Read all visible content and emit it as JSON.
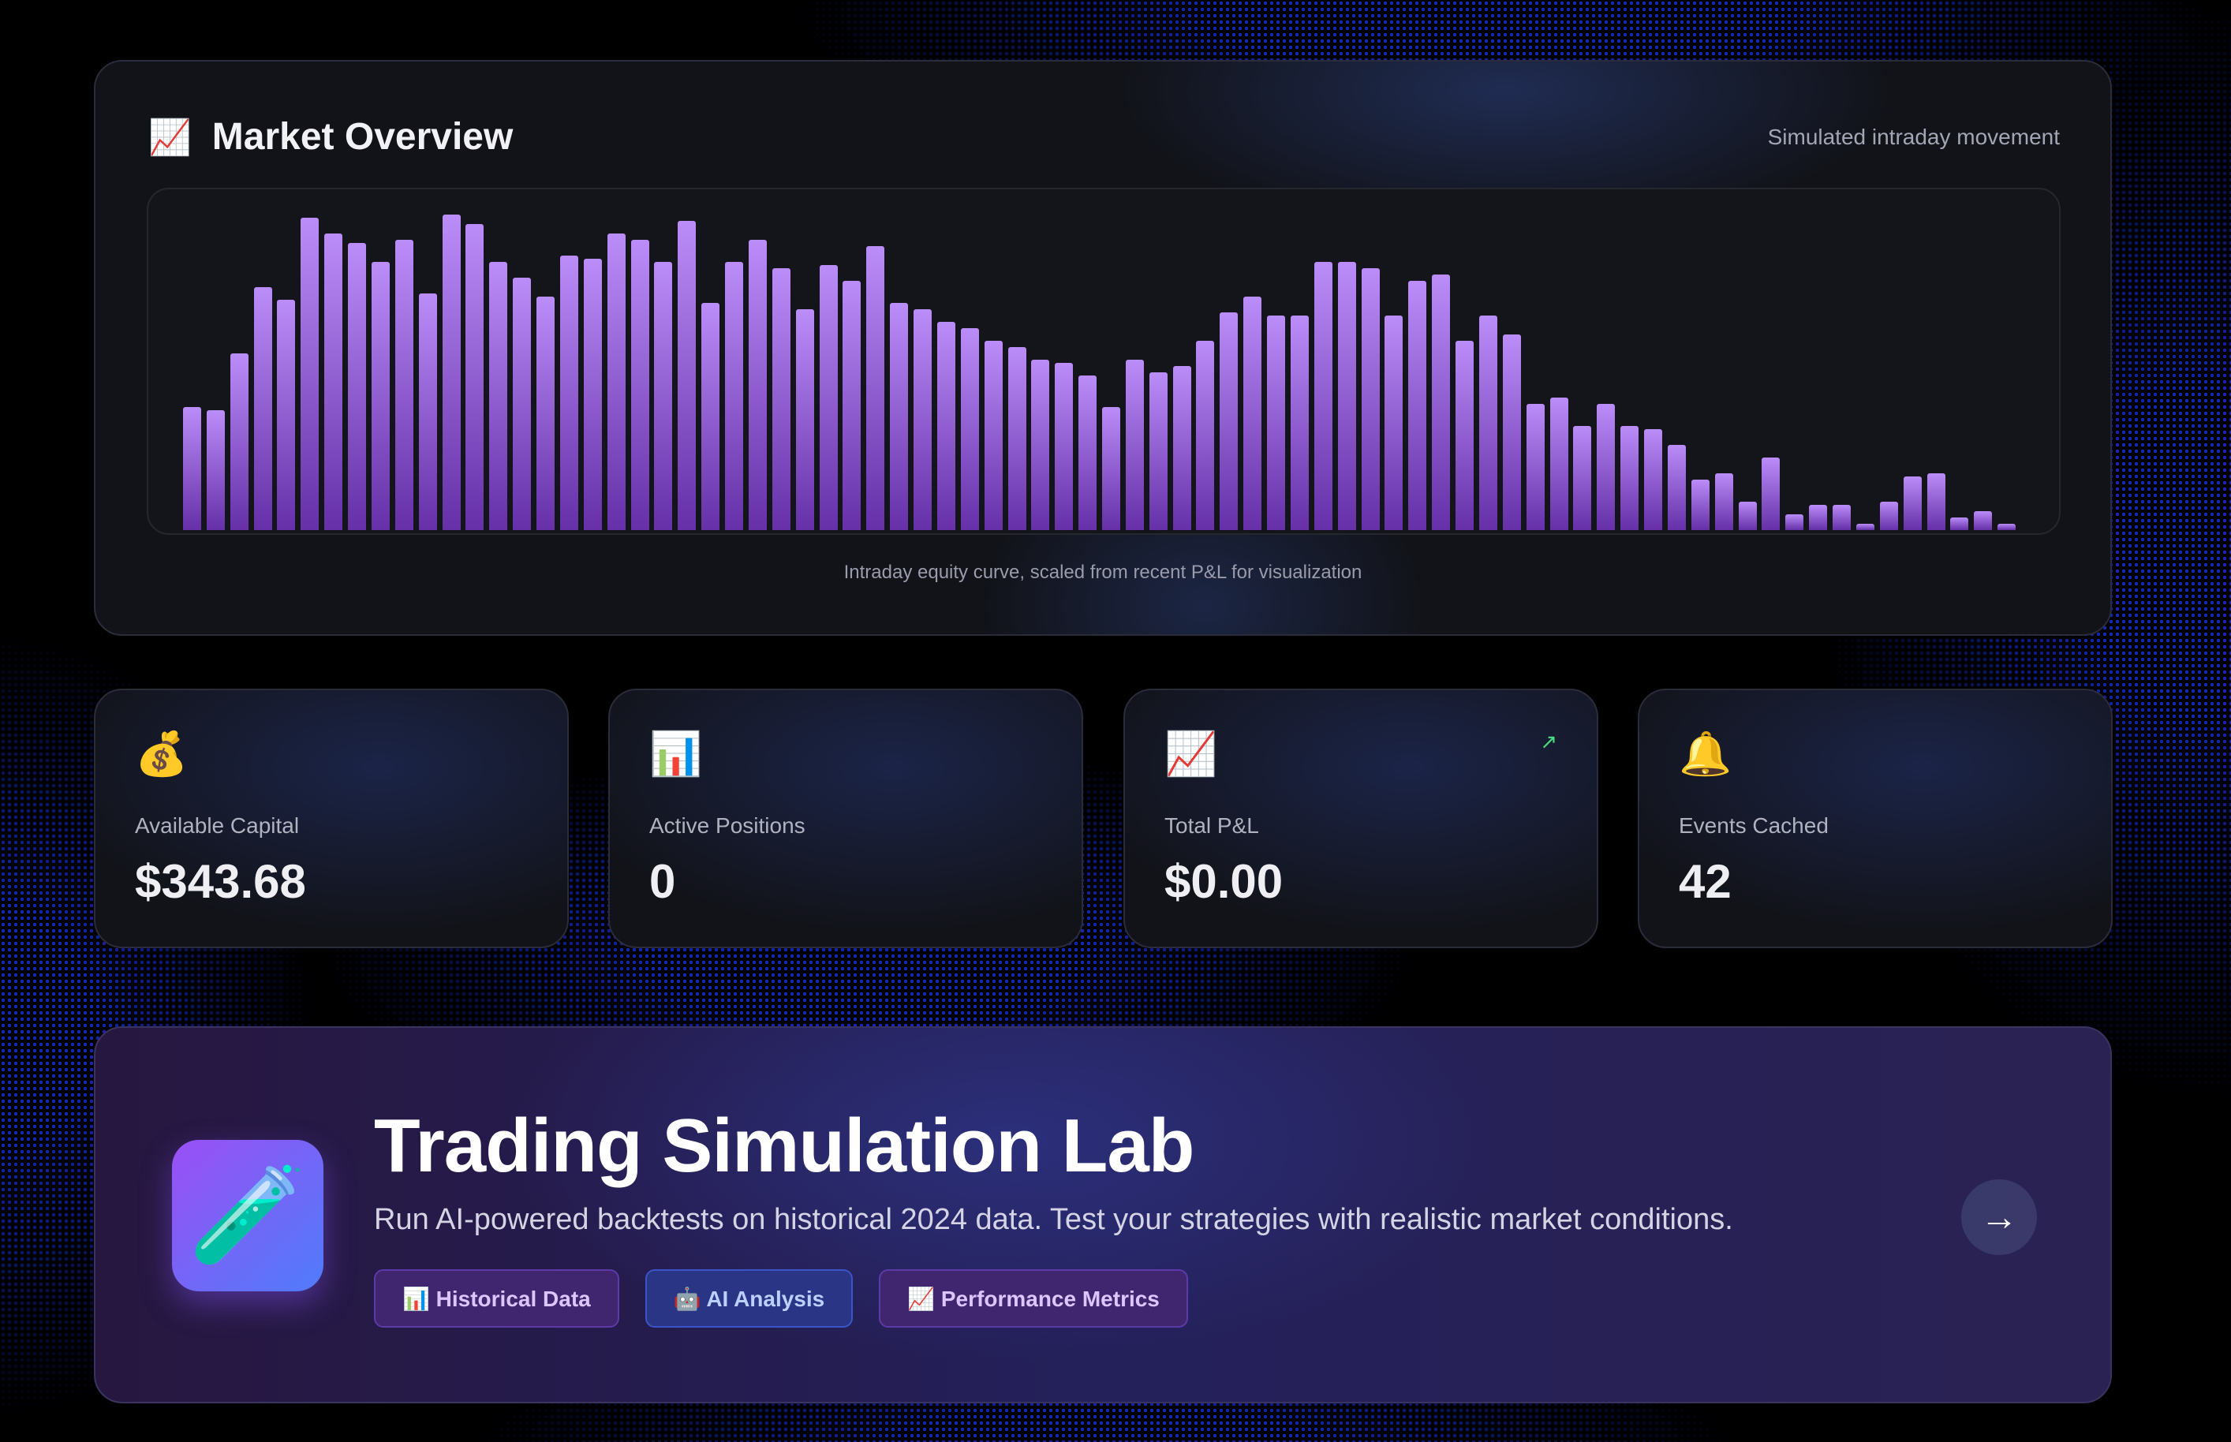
{
  "market": {
    "title": "Market Overview",
    "title_icon": "chart-increasing-icon",
    "subtitle": "Simulated intraday movement",
    "caption": "Intraday equity curve, scaled from recent P&L for visualization"
  },
  "chart_data": {
    "type": "bar",
    "title": "",
    "xlabel": "",
    "ylabel": "",
    "ylim": [
      0,
      100
    ],
    "grid": false,
    "color": "#a06ce8",
    "values": [
      39,
      38,
      56,
      77,
      73,
      99,
      94,
      91,
      85,
      92,
      75,
      100,
      97,
      85,
      80,
      74,
      87,
      86,
      94,
      92,
      85,
      98,
      72,
      85,
      92,
      83,
      70,
      84,
      79,
      90,
      72,
      70,
      66,
      64,
      60,
      58,
      54,
      53,
      49,
      39,
      54,
      50,
      52,
      60,
      69,
      74,
      68,
      68,
      85,
      85,
      83,
      68,
      79,
      81,
      60,
      68,
      62,
      40,
      42,
      33,
      40,
      33,
      32,
      27,
      16,
      18,
      9,
      23,
      5,
      8,
      8,
      2,
      9,
      17,
      18,
      4,
      6,
      2
    ]
  },
  "stats": [
    {
      "icon": "money-bag-icon",
      "glyph": "💰",
      "label": "Available Capital",
      "value": "$343.68"
    },
    {
      "icon": "bar-chart-icon",
      "glyph": "📊",
      "label": "Active Positions",
      "value": "0"
    },
    {
      "icon": "chart-increasing-icon",
      "glyph": "📈",
      "label": "Total P&L",
      "value": "$0.00",
      "trend": "↗"
    },
    {
      "icon": "bell-icon",
      "glyph": "🔔",
      "label": "Events Cached",
      "value": "42"
    }
  ],
  "lab": {
    "icon": "test-tube-icon",
    "glyph": "🧪",
    "title": "Trading Simulation Lab",
    "subtitle": "Run AI-powered backtests on historical 2024 data. Test your strategies with realistic market conditions.",
    "chips": [
      "📊 Historical Data",
      "🤖 AI Analysis",
      "📈 Performance Metrics"
    ],
    "arrow": "→"
  },
  "colors": {
    "accent": "#a06ce8",
    "positive": "#4ade80",
    "lab_icon_from": "#9b4ff5",
    "lab_icon_to": "#4f7cfa"
  }
}
